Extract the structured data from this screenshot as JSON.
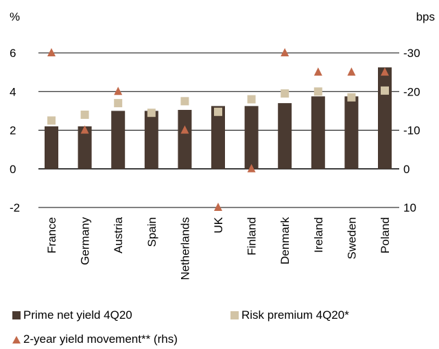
{
  "chart_data": {
    "type": "bar",
    "title": "",
    "left_unit": "%",
    "right_unit": "bps",
    "categories": [
      "France",
      "Germany",
      "Austria",
      "Spain",
      "Netherlands",
      "UK",
      "Finland",
      "Denmark",
      "Ireland",
      "Sweden",
      "Poland"
    ],
    "series": [
      {
        "name": "Prime net yield 4Q20",
        "kind": "bar",
        "axis": "left",
        "color": "#4a3a31",
        "values": [
          2.2,
          2.2,
          3.0,
          3.0,
          3.05,
          3.25,
          3.25,
          3.4,
          3.75,
          3.75,
          5.25
        ]
      },
      {
        "name": "Risk premium 4Q20*",
        "kind": "square",
        "axis": "left",
        "color": "#d2c4a6",
        "values": [
          2.5,
          2.8,
          3.4,
          2.9,
          3.5,
          2.95,
          3.6,
          3.9,
          4.0,
          3.7,
          4.05
        ]
      },
      {
        "name": "2-year yield movement** (rhs)",
        "kind": "triangle",
        "axis": "right",
        "color": "#c2694a",
        "values": [
          -30,
          -10,
          -20,
          null,
          -10,
          10,
          0,
          -30,
          -25,
          -25,
          -25
        ]
      }
    ],
    "ylim_left": [
      -2,
      6
    ],
    "yticks_left": [
      "6",
      "4",
      "2",
      "0",
      "-2"
    ],
    "yticks_left_values": [
      6,
      4,
      2,
      0,
      -2
    ],
    "ylim_right": [
      10,
      -30
    ],
    "yticks_right": [
      "-30",
      "-20",
      "-10",
      "0",
      "10"
    ],
    "grid": true,
    "legend_position": "bottom"
  }
}
